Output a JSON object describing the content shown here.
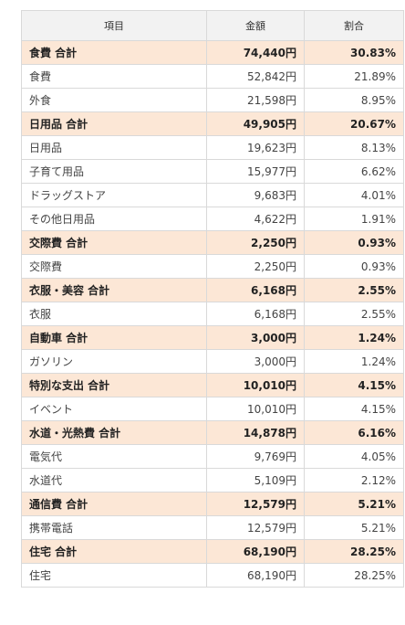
{
  "table": {
    "headers": {
      "item": "項目",
      "amount": "金額",
      "ratio": "割合"
    },
    "rows": [
      {
        "type": "subtotal",
        "item": "食費 合計",
        "amount": "74,440円",
        "ratio": "30.83%"
      },
      {
        "type": "detail",
        "item": "食費",
        "amount": "52,842円",
        "ratio": "21.89%"
      },
      {
        "type": "detail",
        "item": "外食",
        "amount": "21,598円",
        "ratio": "8.95%"
      },
      {
        "type": "subtotal",
        "item": "日用品 合計",
        "amount": "49,905円",
        "ratio": "20.67%"
      },
      {
        "type": "detail",
        "item": "日用品",
        "amount": "19,623円",
        "ratio": "8.13%"
      },
      {
        "type": "detail",
        "item": "子育て用品",
        "amount": "15,977円",
        "ratio": "6.62%"
      },
      {
        "type": "detail",
        "item": "ドラッグストア",
        "amount": "9,683円",
        "ratio": "4.01%"
      },
      {
        "type": "detail",
        "item": "その他日用品",
        "amount": "4,622円",
        "ratio": "1.91%"
      },
      {
        "type": "subtotal",
        "item": "交際費 合計",
        "amount": "2,250円",
        "ratio": "0.93%"
      },
      {
        "type": "detail",
        "item": "交際費",
        "amount": "2,250円",
        "ratio": "0.93%"
      },
      {
        "type": "subtotal",
        "item": "衣服・美容 合計",
        "amount": "6,168円",
        "ratio": "2.55%"
      },
      {
        "type": "detail",
        "item": "衣服",
        "amount": "6,168円",
        "ratio": "2.55%"
      },
      {
        "type": "subtotal",
        "item": "自動車 合計",
        "amount": "3,000円",
        "ratio": "1.24%"
      },
      {
        "type": "detail",
        "item": "ガソリン",
        "amount": "3,000円",
        "ratio": "1.24%"
      },
      {
        "type": "subtotal",
        "item": "特別な支出 合計",
        "amount": "10,010円",
        "ratio": "4.15%"
      },
      {
        "type": "detail",
        "item": "イベント",
        "amount": "10,010円",
        "ratio": "4.15%"
      },
      {
        "type": "subtotal",
        "item": "水道・光熱費 合計",
        "amount": "14,878円",
        "ratio": "6.16%"
      },
      {
        "type": "detail",
        "item": "電気代",
        "amount": "9,769円",
        "ratio": "4.05%"
      },
      {
        "type": "detail",
        "item": "水道代",
        "amount": "5,109円",
        "ratio": "2.12%"
      },
      {
        "type": "subtotal",
        "item": "通信費 合計",
        "amount": "12,579円",
        "ratio": "5.21%"
      },
      {
        "type": "detail",
        "item": "携帯電話",
        "amount": "12,579円",
        "ratio": "5.21%"
      },
      {
        "type": "subtotal",
        "item": "住宅 合計",
        "amount": "68,190円",
        "ratio": "28.25%"
      },
      {
        "type": "detail",
        "item": "住宅",
        "amount": "68,190円",
        "ratio": "28.25%"
      }
    ]
  },
  "colors": {
    "header_bg": "#f2f2f2",
    "subtotal_bg": "#fce7d6",
    "border": "#d9d9d9"
  }
}
